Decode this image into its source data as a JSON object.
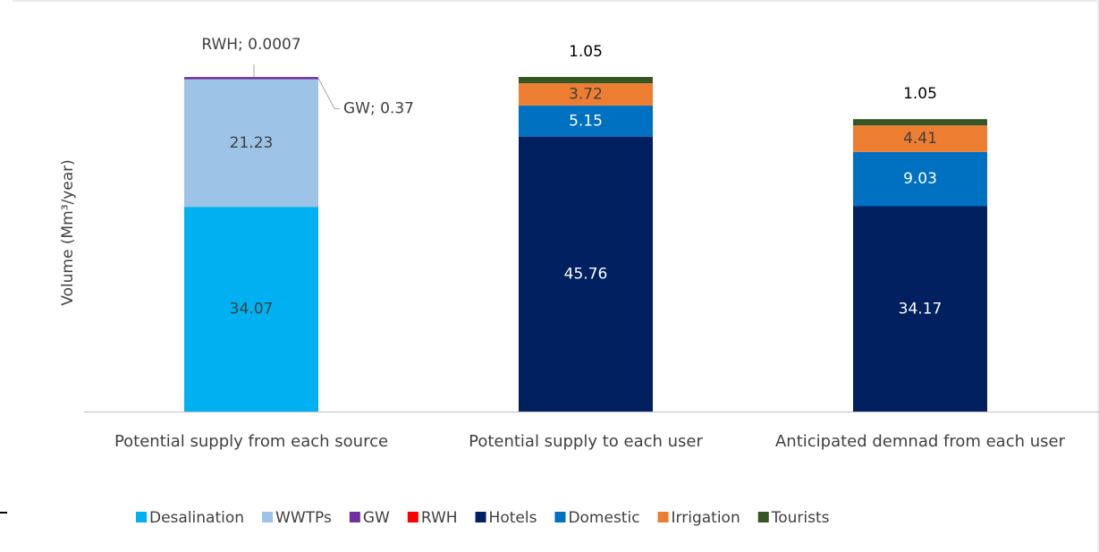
{
  "chart_data": {
    "type": "stacked_bar",
    "y_label": "Volume (Mm³/year)",
    "categories": [
      "Potential supply from each source",
      "Potential supply to each user",
      "Anticipated demnad from each user"
    ],
    "ylim": [
      0,
      67
    ],
    "legend": "bottom",
    "series": [
      {
        "name": "Desalination",
        "color": "#00b0f0",
        "values": [
          34.07,
          null,
          null
        ]
      },
      {
        "name": "WWTPs",
        "color": "#9dc3e6",
        "values": [
          21.23,
          null,
          null
        ]
      },
      {
        "name": "GW",
        "color": "#7030a0",
        "values": [
          0.37,
          null,
          null
        ],
        "value_labels": [
          "GW; 0.37",
          null,
          null
        ]
      },
      {
        "name": "RWH",
        "color": "#ff0000",
        "values": [
          0.0007,
          null,
          null
        ],
        "value_labels": [
          "RWH; 0.0007",
          null,
          null
        ]
      },
      {
        "name": "Hotels",
        "color": "#002060",
        "values": [
          null,
          45.76,
          34.17
        ]
      },
      {
        "name": "Domestic",
        "color": "#0070c0",
        "values": [
          null,
          5.15,
          9.03
        ]
      },
      {
        "name": "Irrigation",
        "color": "#ed7d31",
        "values": [
          null,
          3.72,
          4.41
        ]
      },
      {
        "name": "Tourists",
        "color": "#375623",
        "values": [
          null,
          1.05,
          1.05
        ]
      }
    ]
  }
}
